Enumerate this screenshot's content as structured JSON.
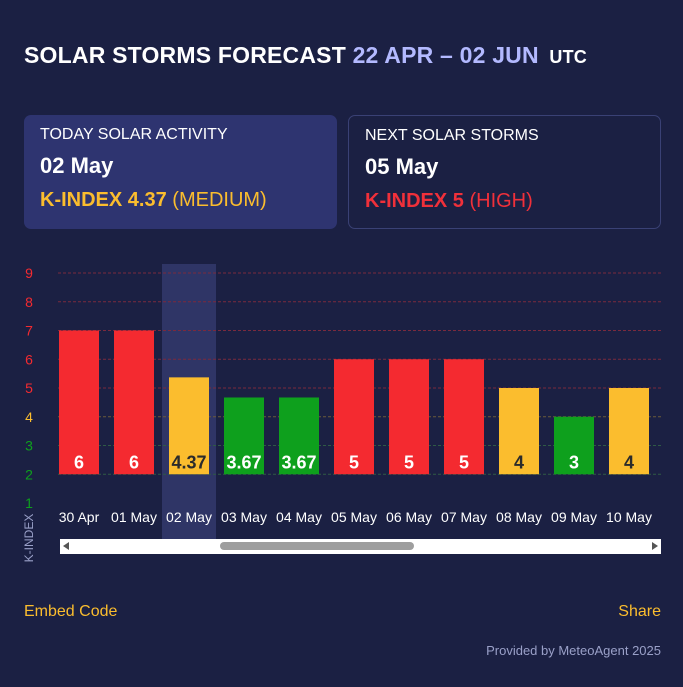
{
  "header": {
    "title_main": "SOLAR STORMS FORECAST",
    "title_range": "22 APR – 02 JUN",
    "title_tz": "UTC"
  },
  "today_card": {
    "label": "TODAY SOLAR ACTIVITY",
    "date": "02 May",
    "kindex_text": "K-INDEX 4.37",
    "level": "(MEDIUM)"
  },
  "next_card": {
    "label": "NEXT SOLAR STORMS",
    "date": "05 May",
    "kindex_text": "K-INDEX 5",
    "level": "(HIGH)"
  },
  "chart_data": {
    "type": "bar",
    "ylabel": "K-INDEX",
    "ylim": [
      1,
      9
    ],
    "yticks": [
      1,
      2,
      3,
      4,
      5,
      6,
      7,
      8,
      9
    ],
    "categories": [
      "30 Apr",
      "01 May",
      "02 May",
      "03 May",
      "04 May",
      "05 May",
      "06 May",
      "07 May",
      "08 May",
      "09 May",
      "10 May"
    ],
    "values": [
      6,
      6,
      4.37,
      3.67,
      3.67,
      5,
      5,
      5,
      4,
      3,
      4
    ],
    "value_labels": [
      "6",
      "6",
      "4.37",
      "3.67",
      "3.67",
      "5",
      "5",
      "5",
      "4",
      "3",
      "4"
    ],
    "highlighted_category": "02 May",
    "colors": {
      "high": "#f42a30",
      "medium": "#fbbd2e",
      "low": "#0ea01d"
    }
  },
  "footer": {
    "embed_label": "Embed Code",
    "share_label": "Share",
    "provided_by": "Provided by MeteoAgent 2025"
  }
}
